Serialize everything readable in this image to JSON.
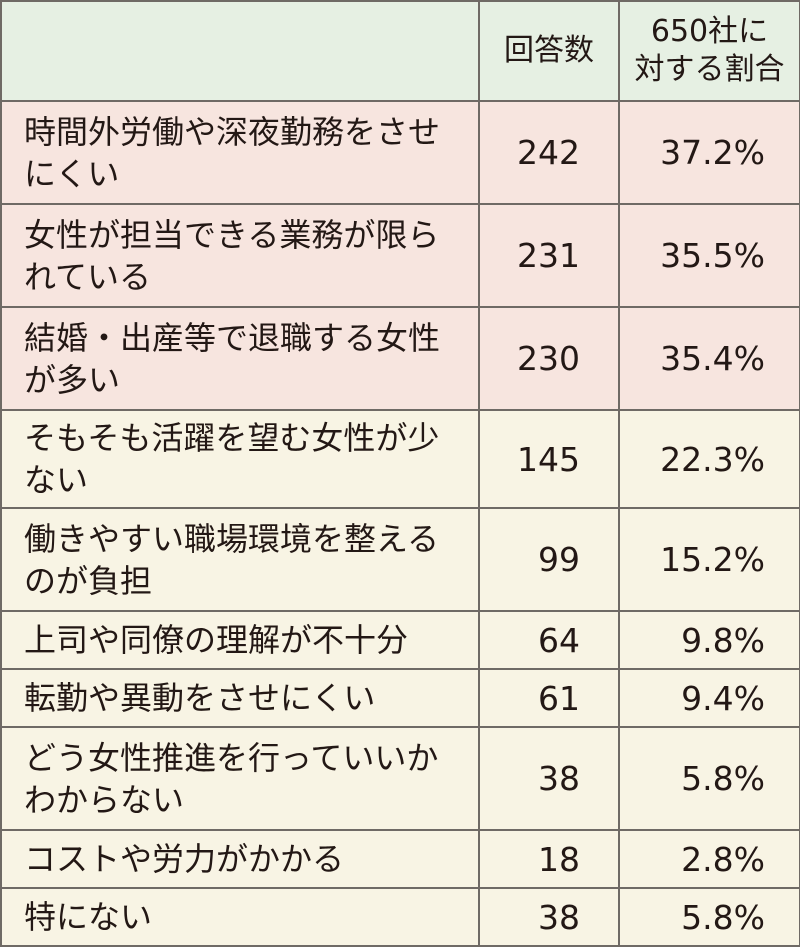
{
  "chart_data": {
    "type": "table",
    "columns": [
      "",
      "回答数",
      "650社に\n対する割合"
    ],
    "rows": [
      {
        "label": "時間外労働や深夜勤務をさせにくい",
        "count": "242",
        "ratio": "37.2%"
      },
      {
        "label": "女性が担当できる業務が限られている",
        "count": "231",
        "ratio": "35.5%"
      },
      {
        "label": "結婚・出産等で退職する女性が多い",
        "count": "230",
        "ratio": "35.4%"
      },
      {
        "label": "そもそも活躍を望む女性が少ない",
        "count": "145",
        "ratio": "22.3%"
      },
      {
        "label": "働きやすい職場環境を整えるのが負担",
        "count": "99",
        "ratio": "15.2%"
      },
      {
        "label": "上司や同僚の理解が不十分",
        "count": "64",
        "ratio": "9.8%"
      },
      {
        "label": "転勤や異動をさせにくい",
        "count": "61",
        "ratio": "9.4%"
      },
      {
        "label": "どう女性推進を行っていいかわからない",
        "count": "38",
        "ratio": "5.8%"
      },
      {
        "label": "コストや労力がかかる",
        "count": "18",
        "ratio": "2.8%"
      },
      {
        "label": "特にない",
        "count": "38",
        "ratio": "5.8%"
      }
    ],
    "header_line1": "650社に",
    "header_line2": "対する割合"
  },
  "colors": {
    "header_bg": "#e6f0e3",
    "highlight_bg": "#f7e5df",
    "normal_bg": "#f8f4e4",
    "border": "#6f6a65",
    "text": "#231815"
  }
}
